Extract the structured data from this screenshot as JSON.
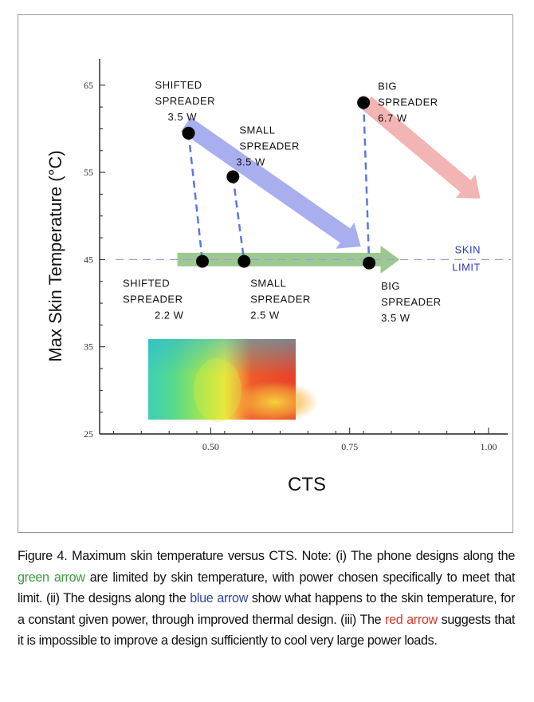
{
  "chart_data": {
    "type": "scatter",
    "title": "",
    "xlabel": "CTS",
    "ylabel": "Max Skin Temperature (°C)",
    "xlim": [
      0.3,
      1.0
    ],
    "ylim": [
      25,
      68
    ],
    "x_ticks": [
      0.5,
      0.75,
      1.0
    ],
    "x_tick_labels": [
      "0.50",
      "0.75",
      "1.00"
    ],
    "y_ticks": [
      25,
      35,
      45,
      55,
      65
    ],
    "y_tick_labels": [
      "25",
      "35",
      "45",
      "55",
      "65"
    ],
    "skin_limit": {
      "y": 45,
      "label": [
        "SKIN",
        "LIMIT"
      ],
      "color": "#2a36c8"
    },
    "points": [
      {
        "name": "shifted-spreader-high",
        "x": 0.46,
        "y": 59.5,
        "label": [
          "SHIFTED",
          "SPREADER",
          "3.5 W"
        ]
      },
      {
        "name": "small-spreader-high",
        "x": 0.54,
        "y": 54.5,
        "label": [
          "SMALL",
          "SPREADER",
          "3.5 W"
        ]
      },
      {
        "name": "big-spreader-high",
        "x": 0.775,
        "y": 63,
        "label": [
          "BIG",
          "SPREADER",
          "6.7 W"
        ]
      },
      {
        "name": "shifted-spreader-low",
        "x": 0.485,
        "y": 44.8,
        "label": [
          "SHIFTED",
          "SPREADER",
          "2.2 W"
        ]
      },
      {
        "name": "small-spreader-low",
        "x": 0.56,
        "y": 44.8,
        "label": [
          "SMALL",
          "SPREADER",
          "2.5 W"
        ]
      },
      {
        "name": "big-spreader-low",
        "x": 0.785,
        "y": 44.6,
        "label": [
          "BIG",
          "SPREADER",
          "3.5 W"
        ]
      }
    ],
    "arrows": [
      {
        "name": "green-arrow",
        "from": [
          0.44,
          45
        ],
        "to": [
          0.84,
          45
        ],
        "color": "#8cbf7c"
      },
      {
        "name": "blue-arrow",
        "from": [
          0.455,
          60.5
        ],
        "to": [
          0.77,
          46.5
        ],
        "color": "#9aa0ec"
      },
      {
        "name": "red-arrow",
        "from": [
          0.78,
          63
        ],
        "to": [
          0.985,
          52
        ],
        "color": "#f0a8a6"
      }
    ]
  },
  "caption": {
    "part1": "Figure 4. Maximum skin temperature versus CTS. Note: (i) The phone designs along the ",
    "green": "green arrow",
    "part2": " are limited by skin temperature, with power chosen specifically to meet that limit. (ii) The designs along the ",
    "blue": "blue arrow",
    "part3": " show what happens to the skin temperature, for a constant given power, through improved thermal design. (iii) The ",
    "red": "red arrow",
    "part4": " suggests that it is impossible to improve a design sufficiently to cool very large power loads."
  }
}
